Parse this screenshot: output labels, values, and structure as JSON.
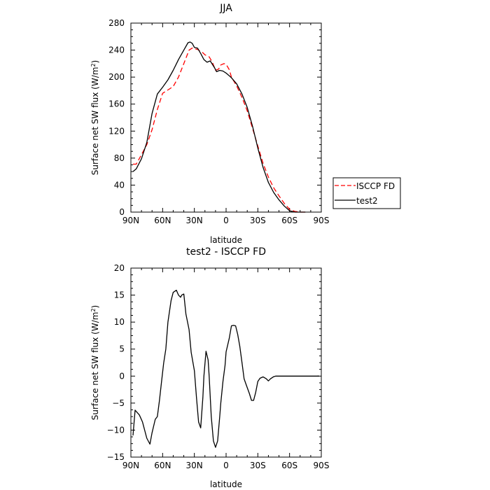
{
  "chart_data": [
    {
      "type": "line",
      "title": "JJA",
      "xlabel": "latitude",
      "ylabel": "Surface net SW flux (W/m",
      "ylabel_sup": "2",
      "ylabel_end": ")",
      "xlim": [
        90,
        -90
      ],
      "ylim": [
        0,
        280
      ],
      "xticks": [
        90,
        60,
        30,
        0,
        -30,
        -60,
        -90
      ],
      "xtick_labels": [
        "90N",
        "60N",
        "30N",
        "0",
        "30S",
        "60S",
        "90S"
      ],
      "yticks": [
        0,
        40,
        80,
        120,
        160,
        200,
        240,
        280
      ],
      "ytick_labels": [
        "0",
        "40",
        "80",
        "120",
        "160",
        "200",
        "240",
        "280"
      ],
      "grid": false,
      "legend": "outside-right",
      "series": [
        {
          "name": "ISCCP FD",
          "color": "#ff0000",
          "dash": true,
          "x": [
            88,
            85,
            80,
            75,
            70,
            65,
            60,
            55,
            50,
            45,
            40,
            35,
            32,
            30,
            27,
            25,
            22,
            20,
            16,
            13,
            10,
            7,
            5,
            2,
            0,
            -3,
            -5,
            -10,
            -15,
            -20,
            -25,
            -30,
            -35,
            -40,
            -45,
            -50,
            -55,
            -60,
            -65,
            -70,
            -75
          ],
          "y": [
            71,
            71,
            85,
            100,
            122,
            152,
            176,
            181,
            186,
            200,
            220,
            240,
            243,
            242,
            241,
            239,
            236,
            233,
            230,
            222,
            210,
            212,
            218,
            220,
            219,
            211,
            200,
            187,
            170,
            150,
            124,
            98,
            72,
            52,
            36,
            24,
            13,
            4,
            1,
            0,
            0
          ]
        },
        {
          "name": "test2",
          "color": "#000000",
          "dash": false,
          "x": [
            88,
            85,
            80,
            75,
            70,
            65,
            60,
            55,
            50,
            45,
            40,
            36,
            34,
            32,
            30,
            27,
            24,
            21,
            18,
            15,
            11,
            9,
            6,
            3,
            0,
            -3,
            -5,
            -10,
            -15,
            -20,
            -25,
            -30,
            -35,
            -40,
            -45,
            -50,
            -55,
            -60,
            -65,
            -70,
            -75
          ],
          "y": [
            60,
            64,
            79,
            103,
            146,
            175,
            185,
            196,
            210,
            226,
            240,
            251,
            252,
            250,
            244,
            243,
            235,
            226,
            222,
            224,
            214,
            208,
            210,
            209,
            206,
            202,
            199,
            190,
            175,
            155,
            127,
            95,
            66,
            44,
            29,
            18,
            9,
            2,
            0,
            0,
            0
          ]
        }
      ]
    },
    {
      "type": "line",
      "title": "test2 - ISCCP FD",
      "xlabel": "latitude",
      "ylabel": "Surface net SW flux (W/m",
      "ylabel_sup": "2",
      "ylabel_end": ")",
      "xlim": [
        90,
        -90
      ],
      "ylim": [
        -15,
        20
      ],
      "xticks": [
        90,
        60,
        30,
        0,
        -30,
        -60,
        -90
      ],
      "xtick_labels": [
        "90N",
        "60N",
        "30N",
        "0",
        "30S",
        "60S",
        "90S"
      ],
      "yticks": [
        -15,
        -10,
        -5,
        0,
        5,
        10,
        15,
        20
      ],
      "ytick_labels": [
        "−15",
        "−10",
        "−5",
        "0",
        "5",
        "10",
        "15",
        "20"
      ],
      "grid": false,
      "series": [
        {
          "color": "#000000",
          "x": [
            88,
            86,
            82,
            79,
            75,
            72,
            70,
            67,
            65,
            63,
            61,
            59,
            57,
            55,
            52,
            50,
            47,
            45,
            43,
            42,
            40,
            38,
            35,
            33,
            30,
            28,
            26,
            24,
            22,
            21,
            19,
            17,
            16,
            14,
            12,
            10,
            8,
            6,
            5,
            3,
            1,
            0,
            -3,
            -5,
            -7,
            -9,
            -11,
            -13,
            -15,
            -17,
            -19,
            -22,
            -24,
            -26,
            -28,
            -30,
            -32,
            -35,
            -38,
            -40,
            -42,
            -45,
            -47,
            -50,
            -53,
            -55,
            -57,
            -60,
            -63,
            -65,
            -67,
            -70,
            -73,
            -75,
            -78,
            -82,
            -88
          ],
          "y": [
            -11,
            -6.3,
            -7.2,
            -8.5,
            -11.5,
            -12.6,
            -10.5,
            -8.0,
            -7.5,
            -4.5,
            -1.0,
            2.4,
            5.0,
            10.0,
            14.0,
            15.5,
            15.9,
            15.0,
            14.6,
            15.0,
            15.2,
            11.5,
            8.6,
            4.4,
            1.0,
            -4.0,
            -8.5,
            -9.6,
            -4.0,
            0.0,
            4.6,
            3.0,
            0.0,
            -7.5,
            -12.0,
            -13.2,
            -12.0,
            -7.5,
            -5.0,
            -1.0,
            2.0,
            4.5,
            7.0,
            9.3,
            9.4,
            9.3,
            7.7,
            5.5,
            2.5,
            -0.5,
            -1.6,
            -3.2,
            -4.5,
            -4.5,
            -3.0,
            -1.0,
            -0.4,
            -0.15,
            -0.5,
            -0.9,
            -0.5,
            -0.1,
            0.0,
            0.0,
            0.0,
            0.0,
            0.0,
            0.0,
            0.0,
            0.0,
            0.0,
            0.0,
            0.0,
            0.0,
            0.0,
            0.0,
            0.0
          ]
        }
      ]
    }
  ]
}
